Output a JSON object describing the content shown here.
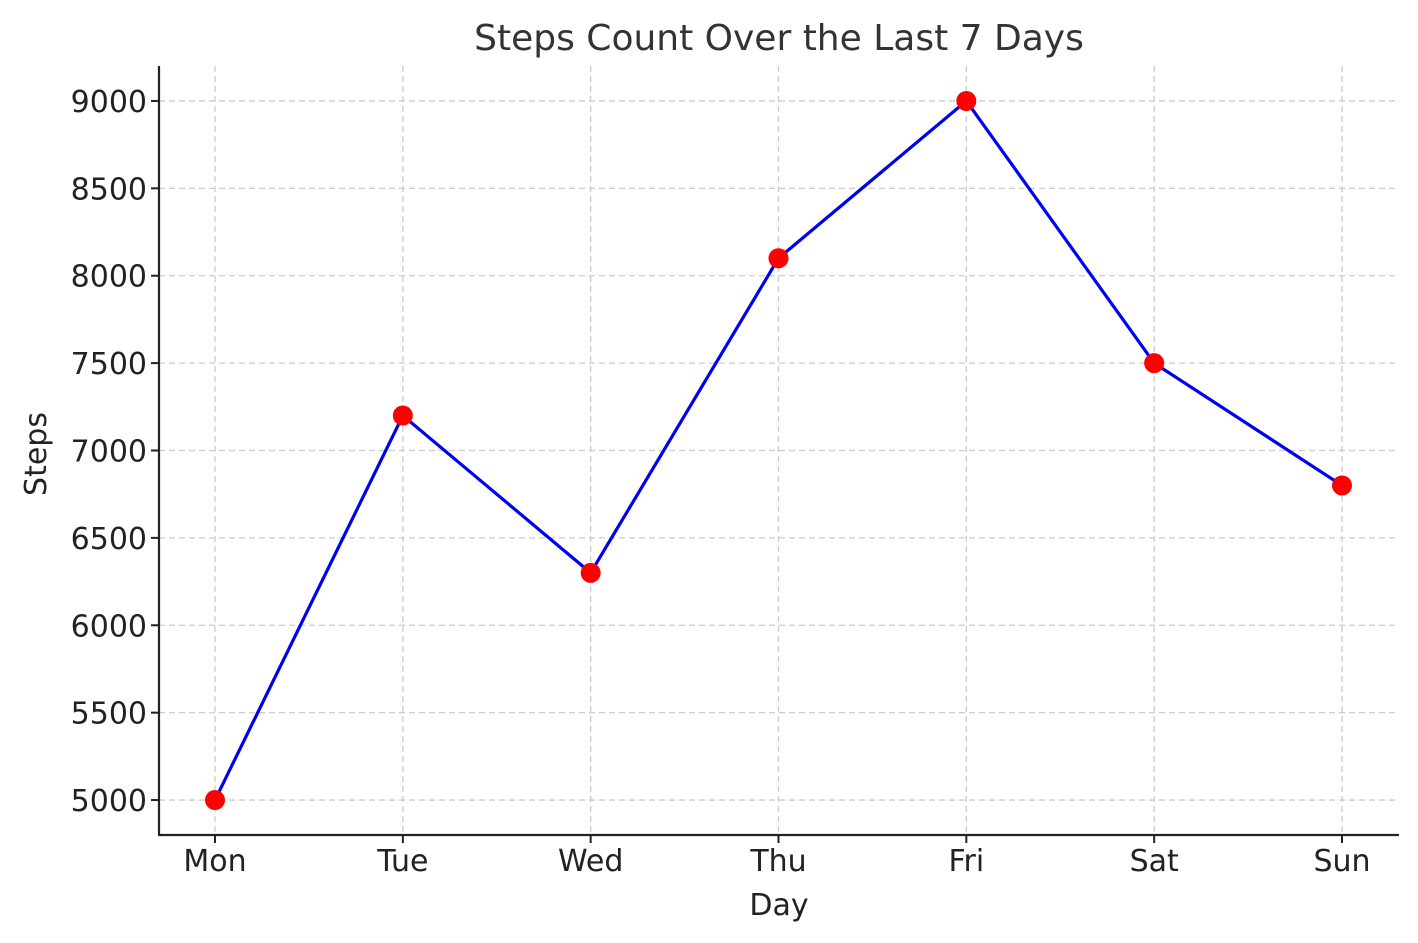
{
  "colors": {
    "line": "#0000ee",
    "marker": "#ff0000",
    "grid": "#cccccc",
    "text": "#222222"
  },
  "chart_data": {
    "type": "line",
    "title": "Steps Count Over the Last 7 Days",
    "xlabel": "Day",
    "ylabel": "Steps",
    "categories": [
      "Mon",
      "Tue",
      "Wed",
      "Thu",
      "Fri",
      "Sat",
      "Sun"
    ],
    "series": [
      {
        "values": [
          5000,
          7200,
          6300,
          8100,
          9000,
          7500,
          6800
        ],
        "line_color": "#0000ee",
        "marker_color": "#ff0000",
        "marker": "circle"
      }
    ],
    "yticks": [
      5000,
      5500,
      6000,
      6500,
      7000,
      7500,
      8000,
      8500,
      9000
    ],
    "ylim": [
      4800,
      9200
    ],
    "grid": true,
    "legend": false
  }
}
